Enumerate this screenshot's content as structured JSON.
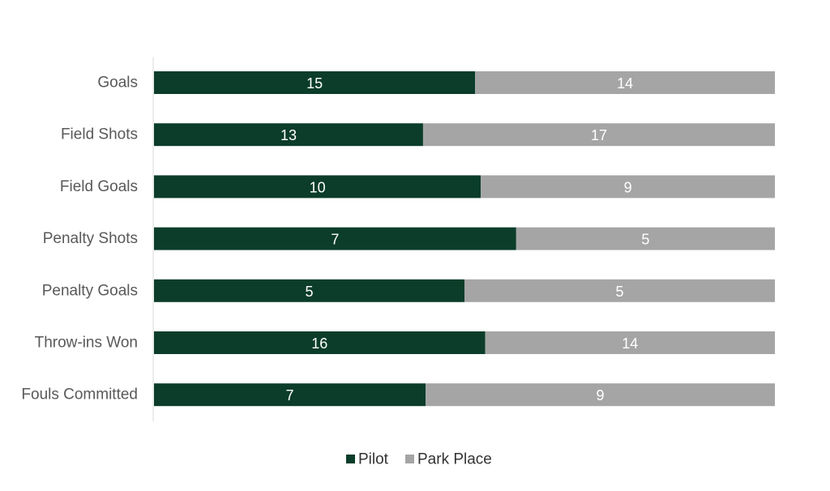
{
  "chart_data": {
    "type": "bar",
    "orientation": "horizontal",
    "stacked": "percent",
    "categories": [
      "Goals",
      "Field Shots",
      "Field Goals",
      "Penalty Shots",
      "Penalty Goals",
      "Throw-ins Won",
      "Fouls Committed"
    ],
    "series": [
      {
        "name": "Pilot",
        "values": [
          15,
          13,
          10,
          7,
          5,
          16,
          7
        ],
        "color": "#0b3d2a"
      },
      {
        "name": "Park Place",
        "values": [
          14,
          17,
          9,
          5,
          5,
          14,
          9
        ],
        "color": "#a5a5a5"
      }
    ],
    "legend_position": "bottom",
    "grid": false
  }
}
